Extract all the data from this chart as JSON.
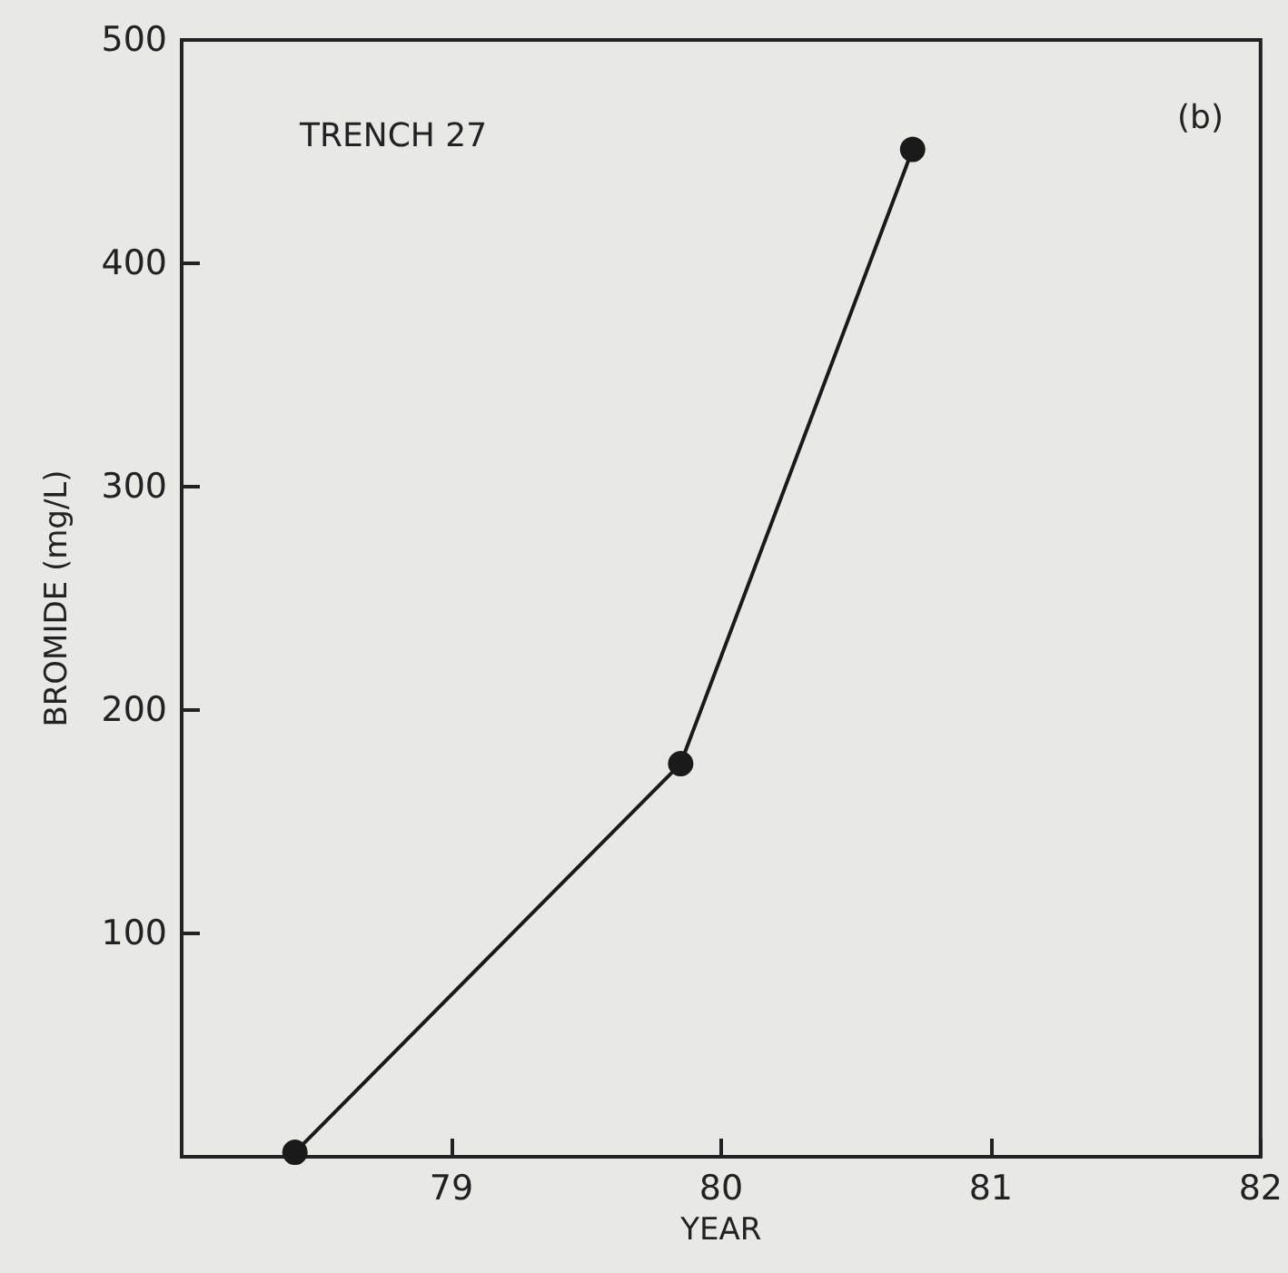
{
  "chart_data": {
    "type": "line",
    "xlabel": "YEAR",
    "ylabel": "BROMIDE (mg/L)",
    "x": [
      78.42,
      79.85,
      80.71
    ],
    "series": [
      {
        "color": "#1a1a1a",
        "values": [
          2,
          176,
          451
        ]
      }
    ],
    "xlim": [
      78,
      82
    ],
    "xticks": [
      79,
      80,
      81,
      82
    ],
    "ylim": [
      0,
      500
    ],
    "yticks": [
      100,
      200,
      300,
      400,
      500
    ],
    "marker": "circle",
    "line_style": "solid",
    "grid": false,
    "annotations": [
      "TRENCH 27",
      "(b)"
    ]
  }
}
